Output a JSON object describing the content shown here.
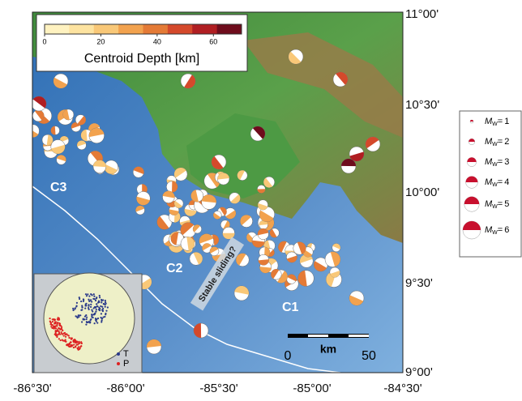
{
  "colorbar": {
    "title": "Centroid Depth [km]",
    "range": [
      0,
      70
    ],
    "ticks": [
      0,
      20,
      40,
      60
    ]
  },
  "axes": {
    "lat_labels": [
      "11°00'",
      "10°30'",
      "10°00'",
      "9°30'",
      "9°00'"
    ],
    "lon_labels": [
      "-86°30'",
      "-86°00'",
      "-85°30'",
      "-85°00'",
      "-84°30'"
    ]
  },
  "legend": {
    "symbol": "M",
    "subscript": "W",
    "equals": "=",
    "magnitudes": [
      1,
      2,
      3,
      4,
      5,
      6
    ]
  },
  "labels": {
    "c1": "C1",
    "c2": "C2",
    "c3": "C3",
    "stable": "Stable sliding?"
  },
  "scale_bar": {
    "start": 0,
    "unit": "km",
    "end": 50
  },
  "inset": {
    "t": "T",
    "p": "P"
  }
}
